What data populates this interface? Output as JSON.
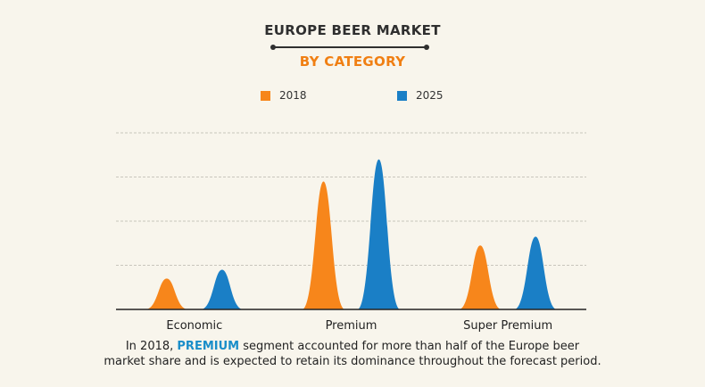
{
  "chart_data": {
    "type": "area",
    "title": "EUROPE BEER MARKET",
    "subtitle": "BY CATEGORY",
    "categories": [
      "Economic",
      "Premium",
      "Super Premium"
    ],
    "series": [
      {
        "name": "2018",
        "color": "#f7861b",
        "values": [
          7,
          29,
          14.5
        ]
      },
      {
        "name": "2025",
        "color": "#1a7fc6",
        "values": [
          9,
          34,
          16.5
        ]
      }
    ],
    "ylim": [
      0,
      40
    ],
    "grid": true,
    "legend": "top-center"
  },
  "caption": {
    "part1": "In 2018, ",
    "highlight": "PREMIUM",
    "part2": " segment accounted for more than half of the Europe beer",
    "line2": "market share and is expected to retain its dominance throughout the forecast period."
  }
}
